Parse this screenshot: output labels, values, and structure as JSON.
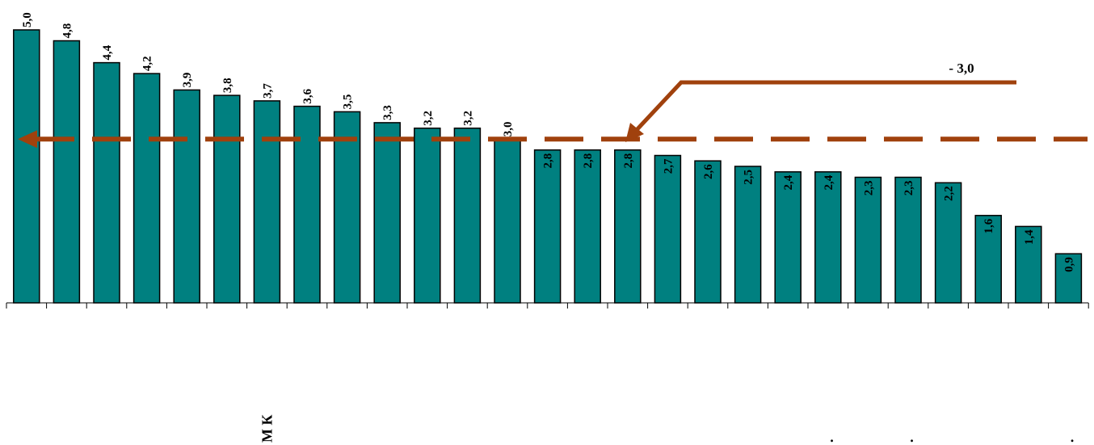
{
  "chart_data": {
    "type": "bar",
    "title": "",
    "xlabel": "",
    "ylabel": "",
    "ylim": [
      0,
      5.0
    ],
    "grid": false,
    "legend": "none",
    "categories": [
      "",
      "",
      "",
      "",
      "",
      "",
      "М К",
      "",
      "",
      "",
      "",
      "",
      "",
      "",
      "",
      "",
      "",
      "",
      "",
      "",
      ".",
      "",
      ".",
      "",
      "",
      "",
      "."
    ],
    "values": [
      5.0,
      4.8,
      4.4,
      4.2,
      3.9,
      3.8,
      3.7,
      3.6,
      3.5,
      3.3,
      3.2,
      3.2,
      3.0,
      2.8,
      2.8,
      2.8,
      2.7,
      2.6,
      2.5,
      2.4,
      2.4,
      2.3,
      2.3,
      2.2,
      1.6,
      1.4,
      0.9
    ],
    "value_labels": [
      "5,0",
      "4,8",
      "4,4",
      "4,2",
      "3,9",
      "3,8",
      "3,7",
      "3,6",
      "3,5",
      "3,3",
      "3,2",
      "3,2",
      "3,0",
      "2,8",
      "2,8",
      "2,8",
      "2,7",
      "2,6",
      "2,5",
      "2,4",
      "2,4",
      "2,3",
      "2,3",
      "2,2",
      "1,6",
      "1,4",
      "0,9"
    ],
    "reference_line": {
      "value": 3.0,
      "label": "- 3,0"
    },
    "colors": {
      "bar": "#008080",
      "bar_border": "#000000",
      "reference": "#a0410d"
    }
  }
}
